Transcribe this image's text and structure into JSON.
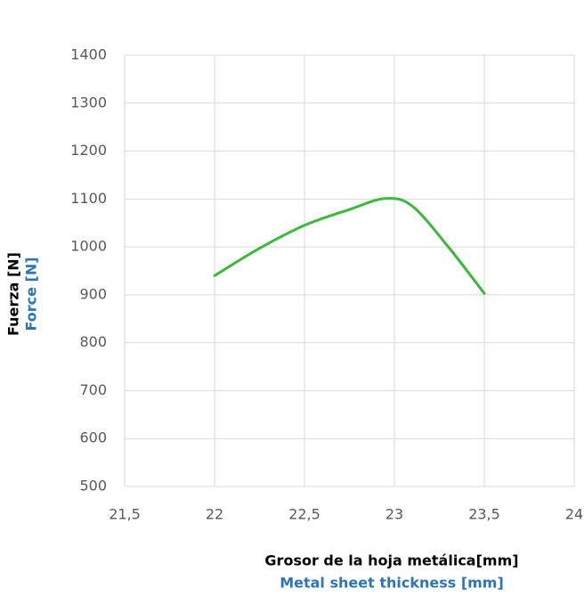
{
  "chart_data": {
    "type": "line",
    "xlabel": "Grosor de la hoja metálica[mm]",
    "xlabel_translation": "Metal sheet thickness [mm]",
    "ylabel": "Fuerza [N]",
    "ylabel_translation": "Force [N]",
    "x": [
      22,
      22.25,
      22.5,
      22.75,
      22.95,
      23.1,
      23.3,
      23.5
    ],
    "series": [
      {
        "name": "Force",
        "color": "#3cb93c",
        "values": [
          940,
          997,
          1045,
          1078,
          1101,
          1085,
          1000,
          903
        ]
      }
    ],
    "xlim": [
      21.5,
      24
    ],
    "xticks": [
      {
        "value": 21.5,
        "label": "21,5"
      },
      22,
      {
        "value": 22.5,
        "label": "22,5"
      },
      23,
      {
        "value": 23.5,
        "label": "23,5"
      },
      24
    ],
    "ylim": [
      500,
      1400
    ],
    "yticks": [
      500,
      600,
      700,
      800,
      900,
      1000,
      1100,
      1200,
      1300,
      1400
    ],
    "grid": true
  }
}
